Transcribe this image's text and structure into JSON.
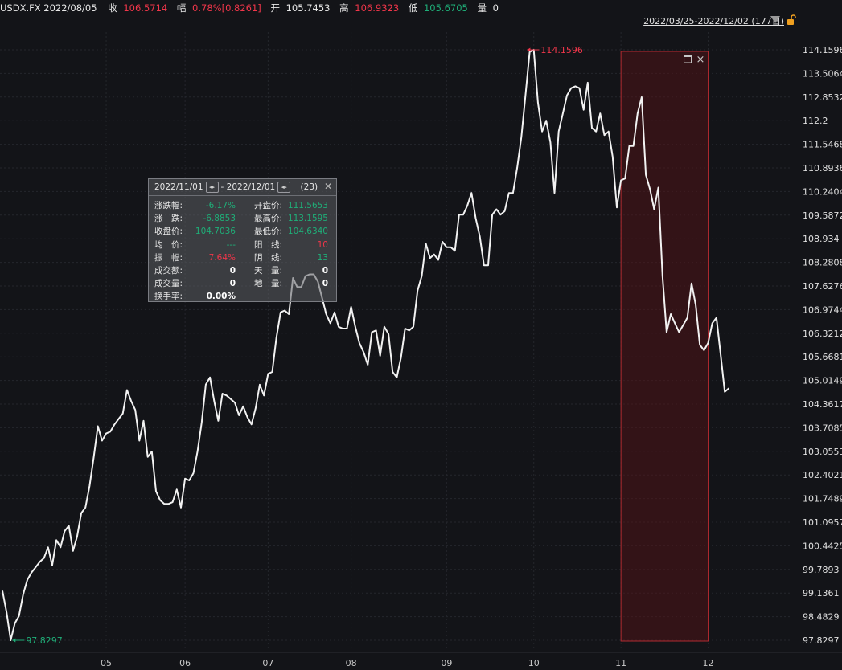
{
  "header": {
    "symbol_date": "USDX.FX 2022/08/05",
    "close_label": "收",
    "close_value": "106.5714",
    "change_label": "幅",
    "change_value": "0.78%[0.8261]",
    "open_label": "开",
    "open_value": "105.7453",
    "high_label": "高",
    "high_value": "106.9323",
    "low_label": "低",
    "low_value": "105.6705",
    "volume_label": "量",
    "volume_value": "0"
  },
  "range_selector": {
    "label": "2022/03/25-2022/12/02 (177日)"
  },
  "colors": {
    "up": "#f0364a",
    "down": "#1fae78",
    "line": "#f2f2f2",
    "background": "#131418",
    "grid": "#24262c"
  },
  "chart_data": {
    "type": "line",
    "series": [
      {
        "values": [
          99.2,
          98.6,
          97.83,
          98.3,
          98.5,
          99.1,
          99.5,
          99.7,
          99.85,
          100.0,
          100.1,
          100.4,
          99.9,
          100.6,
          100.4,
          100.85,
          101.0,
          100.3,
          100.7,
          101.35,
          101.5,
          102.1,
          102.9,
          103.75,
          103.35,
          103.55,
          103.6,
          103.8,
          103.95,
          104.1,
          104.75,
          104.45,
          104.2,
          103.35,
          103.9,
          102.9,
          103.05,
          101.95,
          101.7,
          101.6,
          101.6,
          101.65,
          102.0,
          101.5,
          102.3,
          102.25,
          102.45,
          103.05,
          103.85,
          104.9,
          105.1,
          104.45,
          103.9,
          104.65,
          104.6,
          104.5,
          104.4,
          104.05,
          104.3,
          104.0,
          103.8,
          104.25,
          104.9,
          104.6,
          105.2,
          105.25,
          106.2,
          106.9,
          106.95,
          106.85,
          107.85,
          107.6,
          107.6,
          107.9,
          107.95,
          107.95,
          107.75,
          107.3,
          106.85,
          106.6,
          106.9,
          106.5,
          106.45,
          106.45,
          107.05,
          106.5,
          106.05,
          105.8,
          105.45,
          106.35,
          106.4,
          105.7,
          106.5,
          106.3,
          105.25,
          105.1,
          105.65,
          106.45,
          106.4,
          106.5,
          107.5,
          107.9,
          108.8,
          108.4,
          108.5,
          108.35,
          108.85,
          108.7,
          108.7,
          108.6,
          109.6,
          109.6,
          109.85,
          110.2,
          109.5,
          109.0,
          108.2,
          108.2,
          109.6,
          109.75,
          109.6,
          109.7,
          110.2,
          110.2,
          110.9,
          111.75,
          112.9,
          114.1,
          114.16,
          112.7,
          111.9,
          112.2,
          111.6,
          110.2,
          111.9,
          112.4,
          112.9,
          113.1,
          113.15,
          113.1,
          112.5,
          113.25,
          112.0,
          111.9,
          112.4,
          111.8,
          111.9,
          111.2,
          109.8,
          110.55,
          110.6,
          111.5,
          111.5,
          112.4,
          112.85,
          110.7,
          110.3,
          109.75,
          110.35,
          107.9,
          106.35,
          106.85,
          106.6,
          106.35,
          106.55,
          106.75,
          107.7,
          107.1,
          106.0,
          105.85,
          106.05,
          106.6,
          106.75,
          105.75,
          104.7,
          104.8
        ]
      }
    ],
    "ylim": [
      97.8297,
      114.1596
    ],
    "yticks": [
      "114.1596",
      "113.5064",
      "112.8532",
      "112.2",
      "111.5468",
      "110.8936",
      "110.2404",
      "109.5872",
      "108.934",
      "108.2808",
      "107.6276",
      "106.9744",
      "106.3212",
      "105.6681",
      "105.0149",
      "104.3617",
      "103.7085",
      "103.0553",
      "102.4021",
      "101.7489",
      "101.0957",
      "100.4425",
      "99.7893",
      "99.1361",
      "98.4829",
      "97.8297"
    ],
    "xticks": [
      {
        "label": "05",
        "index": 25
      },
      {
        "label": "06",
        "index": 44
      },
      {
        "label": "07",
        "index": 64
      },
      {
        "label": "08",
        "index": 84
      },
      {
        "label": "09",
        "index": 107
      },
      {
        "label": "10",
        "index": 128
      },
      {
        "label": "11",
        "index": 149
      },
      {
        "label": "12",
        "index": 170
      }
    ],
    "annotations": [
      {
        "text": "114.1596",
        "index": 126,
        "value": 114.1596,
        "kind": "high"
      },
      {
        "text": "97.8297",
        "index": 2,
        "value": 97.8297,
        "kind": "low"
      }
    ],
    "highlight": {
      "start_index": 149,
      "end_index": 170
    },
    "grid": true
  },
  "tooltip": {
    "start": "2022/11/01",
    "end": "2022/12/01",
    "dash": "-",
    "count": "(23)",
    "rows": [
      {
        "l1": "涨跌幅:",
        "v1": "-6.17%",
        "c1": "g",
        "l2": "开盘价:",
        "v2": "111.5653",
        "c2": "g"
      },
      {
        "l1": "涨　跌:",
        "v1": "-6.8853",
        "c1": "g",
        "l2": "最高价:",
        "v2": "113.1595",
        "c2": "g"
      },
      {
        "l1": "收盘价:",
        "v1": "104.7036",
        "c1": "g",
        "l2": "最低价:",
        "v2": "104.6340",
        "c2": "g"
      },
      {
        "l1": "均　价:",
        "v1": "---",
        "c1": "g",
        "l2": "阳　线:",
        "v2": "10",
        "c2": "r"
      },
      {
        "l1": "振　幅:",
        "v1": "7.64%",
        "c1": "r",
        "l2": "阴　线:",
        "v2": "13",
        "c2": "g"
      },
      {
        "l1": "成交额:",
        "v1": "0",
        "c1": "tt-bold",
        "l2": "天　量:",
        "v2": "0",
        "c2": "tt-bold"
      },
      {
        "l1": "成交量:",
        "v1": "0",
        "c1": "tt-bold",
        "l2": "地　量:",
        "v2": "0",
        "c2": "tt-bold"
      },
      {
        "l1": "换手率:",
        "v1": "0.00%",
        "c1": "tt-bold",
        "l2": "",
        "v2": "",
        "c2": ""
      }
    ]
  }
}
